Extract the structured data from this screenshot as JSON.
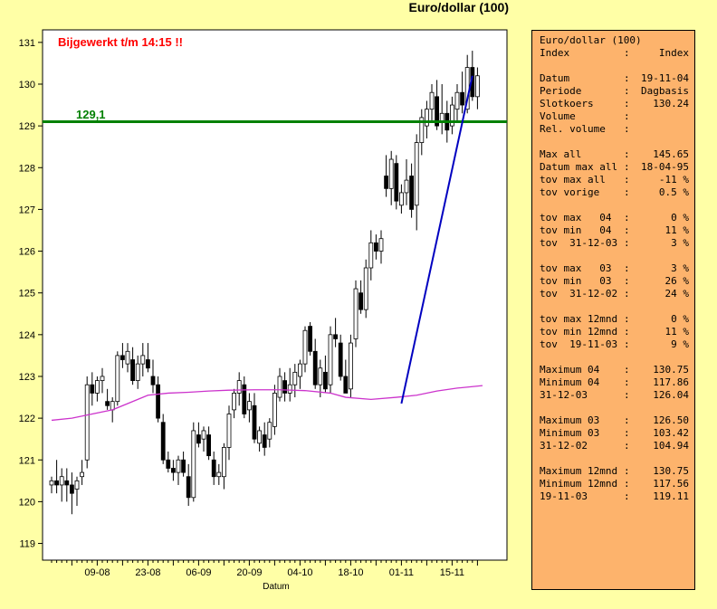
{
  "title": "Euro/dollar (100)",
  "chart_data": {
    "type": "candlestick",
    "xlabel": "Datum",
    "ylim": [
      118.6,
      131.3
    ],
    "yticks": [
      119,
      120,
      121,
      122,
      123,
      124,
      125,
      126,
      127,
      128,
      129,
      130,
      131
    ],
    "xticks": [
      {
        "label": "09-08",
        "index": 9
      },
      {
        "label": "23-08",
        "index": 19
      },
      {
        "label": "06-09",
        "index": 29
      },
      {
        "label": "20-09",
        "index": 39
      },
      {
        "label": "04-10",
        "index": 49
      },
      {
        "label": "18-10",
        "index": 59
      },
      {
        "label": "01-11",
        "index": 69
      },
      {
        "label": "15-11",
        "index": 79
      }
    ],
    "annotation": {
      "text": "Bijgewerkt t/m 14:15 !!",
      "color": "#FF0000"
    },
    "hline": {
      "value": 129.1,
      "label": "129,1",
      "color": "#008000"
    },
    "trendline": {
      "from": [
        -2,
        122.35
      ],
      "to": [
        12,
        130.2
      ],
      "anchor_index": 71,
      "color": "#0000C0"
    },
    "ma_color": "#CC33CC",
    "moving_average": [
      [
        0,
        121.95
      ],
      [
        4,
        122.0
      ],
      [
        8,
        122.1
      ],
      [
        12,
        122.2
      ],
      [
        15,
        122.35
      ],
      [
        17,
        122.45
      ],
      [
        19,
        122.55
      ],
      [
        23,
        122.6
      ],
      [
        27,
        122.62
      ],
      [
        31,
        122.65
      ],
      [
        35,
        122.67
      ],
      [
        40,
        122.68
      ],
      [
        45,
        122.68
      ],
      [
        50,
        122.66
      ],
      [
        55,
        122.6
      ],
      [
        58,
        122.5
      ],
      [
        63,
        122.45
      ],
      [
        68,
        122.5
      ],
      [
        72,
        122.55
      ],
      [
        76,
        122.65
      ],
      [
        80,
        122.72
      ],
      [
        85,
        122.78
      ]
    ],
    "candles": [
      [
        120.4,
        120.6,
        120.2,
        120.5
      ],
      [
        120.5,
        121.0,
        120.2,
        120.4
      ],
      [
        120.4,
        120.8,
        120.0,
        120.6
      ],
      [
        120.5,
        120.8,
        120.0,
        120.4
      ],
      [
        120.4,
        120.7,
        119.7,
        120.2
      ],
      [
        120.3,
        120.6,
        119.9,
        120.5
      ],
      [
        120.6,
        121.0,
        120.4,
        120.7
      ],
      [
        121.0,
        123.0,
        120.8,
        122.8
      ],
      [
        122.8,
        123.1,
        122.3,
        122.6
      ],
      [
        122.6,
        123.0,
        122.4,
        122.9
      ],
      [
        122.9,
        123.2,
        122.6,
        123.0
      ],
      [
        122.4,
        122.7,
        122.2,
        122.3
      ],
      [
        122.2,
        122.5,
        121.9,
        122.4
      ],
      [
        122.4,
        123.6,
        122.3,
        123.5
      ],
      [
        123.5,
        123.8,
        123.2,
        123.4
      ],
      [
        123.3,
        123.8,
        123.1,
        123.6
      ],
      [
        123.4,
        123.7,
        122.8,
        122.9
      ],
      [
        122.9,
        123.5,
        122.7,
        123.3
      ],
      [
        123.3,
        123.8,
        123.0,
        123.5
      ],
      [
        123.4,
        123.8,
        123.1,
        123.2
      ],
      [
        123.0,
        123.4,
        122.6,
        122.8
      ],
      [
        122.8,
        123.0,
        121.9,
        122.0
      ],
      [
        121.9,
        122.1,
        120.9,
        121.0
      ],
      [
        121.0,
        121.2,
        120.7,
        120.8
      ],
      [
        120.8,
        121.0,
        120.5,
        120.7
      ],
      [
        120.7,
        121.1,
        120.4,
        121.0
      ],
      [
        121.0,
        121.2,
        120.6,
        120.7
      ],
      [
        120.6,
        120.9,
        119.9,
        120.1
      ],
      [
        120.1,
        121.9,
        120.0,
        121.7
      ],
      [
        121.6,
        121.9,
        121.3,
        121.4
      ],
      [
        121.5,
        121.8,
        121.2,
        121.7
      ],
      [
        121.6,
        121.8,
        121.0,
        121.1
      ],
      [
        121.0,
        121.2,
        120.4,
        120.6
      ],
      [
        120.6,
        120.9,
        120.4,
        120.7
      ],
      [
        120.6,
        121.4,
        120.3,
        121.3
      ],
      [
        121.3,
        122.3,
        121.0,
        122.1
      ],
      [
        122.2,
        122.7,
        122.0,
        122.6
      ],
      [
        122.6,
        123.1,
        122.3,
        122.9
      ],
      [
        122.8,
        123.0,
        122.0,
        122.1
      ],
      [
        122.2,
        122.6,
        121.9,
        122.4
      ],
      [
        122.3,
        122.6,
        121.4,
        121.5
      ],
      [
        121.4,
        121.8,
        121.2,
        121.7
      ],
      [
        121.6,
        121.9,
        121.1,
        121.3
      ],
      [
        121.5,
        122.0,
        121.3,
        121.9
      ],
      [
        121.8,
        122.8,
        121.6,
        122.6
      ],
      [
        122.5,
        123.2,
        122.4,
        123.0
      ],
      [
        122.9,
        123.1,
        122.4,
        122.6
      ],
      [
        122.6,
        123.2,
        122.4,
        122.8
      ],
      [
        122.8,
        123.3,
        122.5,
        123.1
      ],
      [
        123.0,
        123.4,
        122.7,
        123.3
      ],
      [
        123.3,
        124.2,
        123.1,
        124.1
      ],
      [
        124.2,
        124.3,
        123.5,
        123.6
      ],
      [
        123.6,
        123.9,
        122.7,
        122.8
      ],
      [
        122.8,
        123.4,
        122.5,
        123.2
      ],
      [
        123.1,
        123.5,
        122.6,
        122.7
      ],
      [
        122.8,
        124.2,
        122.6,
        124.0
      ],
      [
        124.0,
        124.4,
        123.7,
        123.9
      ],
      [
        123.8,
        124.0,
        122.9,
        123.0
      ],
      [
        123.0,
        123.4,
        122.6,
        122.6
      ],
      [
        122.7,
        124.0,
        122.5,
        123.8
      ],
      [
        123.9,
        125.3,
        123.7,
        125.1
      ],
      [
        125.0,
        125.3,
        124.5,
        124.6
      ],
      [
        124.6,
        125.8,
        124.4,
        125.6
      ],
      [
        125.6,
        126.5,
        125.3,
        126.2
      ],
      [
        126.2,
        126.4,
        125.8,
        126.0
      ],
      [
        126.0,
        126.5,
        125.7,
        126.3
      ],
      [
        127.8,
        128.3,
        127.3,
        127.5
      ],
      [
        127.5,
        128.4,
        127.1,
        128.2
      ],
      [
        128.1,
        128.3,
        127.0,
        127.2
      ],
      [
        127.1,
        127.6,
        126.9,
        127.4
      ],
      [
        127.4,
        128.2,
        127.1,
        127.7
      ],
      [
        127.8,
        128.1,
        126.8,
        127.0
      ],
      [
        127.1,
        128.8,
        126.5,
        128.6
      ],
      [
        128.6,
        129.4,
        128.3,
        129.2
      ],
      [
        129.0,
        129.6,
        128.7,
        129.4
      ],
      [
        129.4,
        130.0,
        129.1,
        129.8
      ],
      [
        129.7,
        130.1,
        128.9,
        129.0
      ],
      [
        129.1,
        130.0,
        128.8,
        129.3
      ],
      [
        129.3,
        129.6,
        128.6,
        128.9
      ],
      [
        129.0,
        129.7,
        128.8,
        129.5
      ],
      [
        129.4,
        130.0,
        129.1,
        129.8
      ],
      [
        129.8,
        130.3,
        129.3,
        129.5
      ],
      [
        129.4,
        130.7,
        129.3,
        130.4
      ],
      [
        130.4,
        130.8,
        129.6,
        129.7
      ],
      [
        129.7,
        130.4,
        129.4,
        130.2
      ]
    ]
  },
  "info_panel": {
    "header": "Euro/dollar (100)",
    "rows": [
      {
        "key": "Index",
        "sep": ":",
        "value": "Index"
      },
      {
        "key": "",
        "sep": "",
        "value": ""
      },
      {
        "key": "Datum",
        "sep": ":",
        "value": "19-11-04"
      },
      {
        "key": "Periode",
        "sep": ":",
        "value": "Dagbasis"
      },
      {
        "key": "Slotkoers",
        "sep": ":",
        "value": "130.24"
      },
      {
        "key": "Volume",
        "sep": ":",
        "value": ""
      },
      {
        "key": "Rel. volume",
        "sep": ":",
        "value": ""
      },
      {
        "key": "",
        "sep": "",
        "value": ""
      },
      {
        "key": "Max all",
        "sep": ":",
        "value": "145.65"
      },
      {
        "key": "Datum max all",
        "sep": ":",
        "value": "18-04-95"
      },
      {
        "key": "tov max all",
        "sep": ":",
        "value": "-11 %"
      },
      {
        "key": "tov vorige",
        "sep": ":",
        "value": "0.5 %"
      },
      {
        "key": "",
        "sep": "",
        "value": ""
      },
      {
        "key": "tov max   04",
        "sep": ":",
        "value": "0 %"
      },
      {
        "key": "tov min   04",
        "sep": ":",
        "value": "11 %"
      },
      {
        "key": "tov  31-12-03",
        "sep": ":",
        "value": "3 %"
      },
      {
        "key": "",
        "sep": "",
        "value": ""
      },
      {
        "key": "tov max   03",
        "sep": ":",
        "value": "3 %"
      },
      {
        "key": "tov min   03",
        "sep": ":",
        "value": "26 %"
      },
      {
        "key": "tov  31-12-02",
        "sep": ":",
        "value": "24 %"
      },
      {
        "key": "",
        "sep": "",
        "value": ""
      },
      {
        "key": "tov max 12mnd",
        "sep": ":",
        "value": "0 %"
      },
      {
        "key": "tov min 12mnd",
        "sep": ":",
        "value": "11 %"
      },
      {
        "key": "tov  19-11-03",
        "sep": ":",
        "value": "9 %"
      },
      {
        "key": "",
        "sep": "",
        "value": ""
      },
      {
        "key": "Maximum 04",
        "sep": ":",
        "value": "130.75"
      },
      {
        "key": "Minimum 04",
        "sep": ":",
        "value": "117.86"
      },
      {
        "key": "31-12-03",
        "sep": ":",
        "value": "126.04"
      },
      {
        "key": "",
        "sep": "",
        "value": ""
      },
      {
        "key": "Maximum 03",
        "sep": ":",
        "value": "126.50"
      },
      {
        "key": "Minimum 03",
        "sep": ":",
        "value": "103.42"
      },
      {
        "key": "31-12-02",
        "sep": ":",
        "value": "104.94"
      },
      {
        "key": "",
        "sep": "",
        "value": ""
      },
      {
        "key": "Maximum 12mnd",
        "sep": ":",
        "value": "130.75"
      },
      {
        "key": "Minimum 12mnd",
        "sep": ":",
        "value": "117.56"
      },
      {
        "key": "19-11-03",
        "sep": ":",
        "value": "119.11"
      }
    ]
  }
}
